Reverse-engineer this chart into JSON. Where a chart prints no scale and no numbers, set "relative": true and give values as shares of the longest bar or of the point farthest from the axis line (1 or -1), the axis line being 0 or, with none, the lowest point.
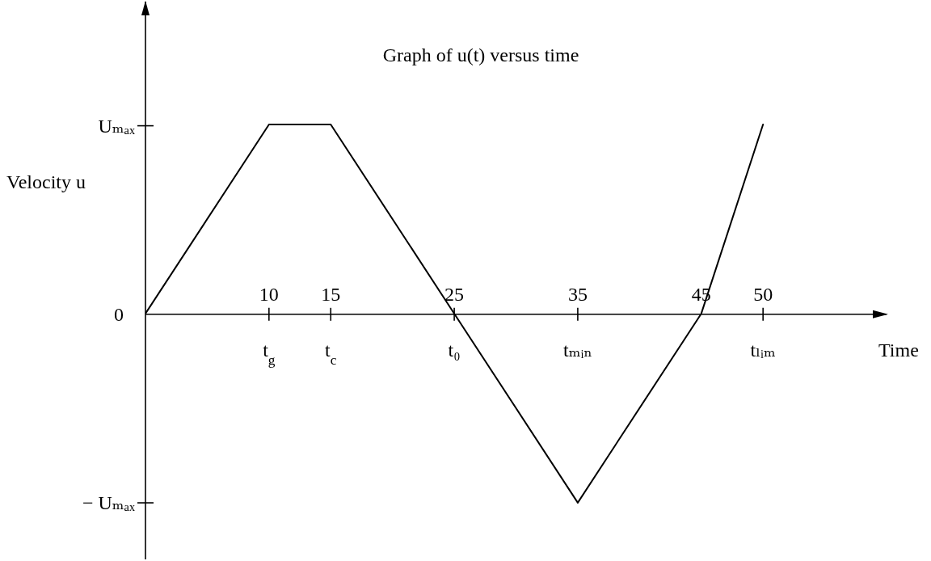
{
  "chart_data": {
    "type": "line",
    "relative": true,
    "title": "Graph of u(t) versus time",
    "xlabel": "Time",
    "ylabel": "Velocity u",
    "x": [
      0,
      10,
      15,
      25,
      35,
      45,
      50
    ],
    "series": [
      {
        "color": "#000000",
        "values": [
          0,
          1,
          1,
          0,
          -1,
          0,
          1
        ]
      }
    ],
    "xlim": [
      0,
      60
    ],
    "xticks": [
      10,
      15,
      25,
      35,
      45,
      50
    ],
    "annotations": [
      "Uₘₐₓ",
      "0",
      "− Uₘₐₓ",
      {
        "text": "t$_{g}$",
        "x": 10
      },
      {
        "text": "t$_{c}$",
        "x": 15
      },
      {
        "text": "t₀",
        "x": 25
      },
      {
        "text": "tₘᵢₙ",
        "x": 35
      },
      {
        "text": "tₗᵢₘ",
        "x": 50
      }
    ],
    "marker": "none",
    "line_style": "solid"
  }
}
